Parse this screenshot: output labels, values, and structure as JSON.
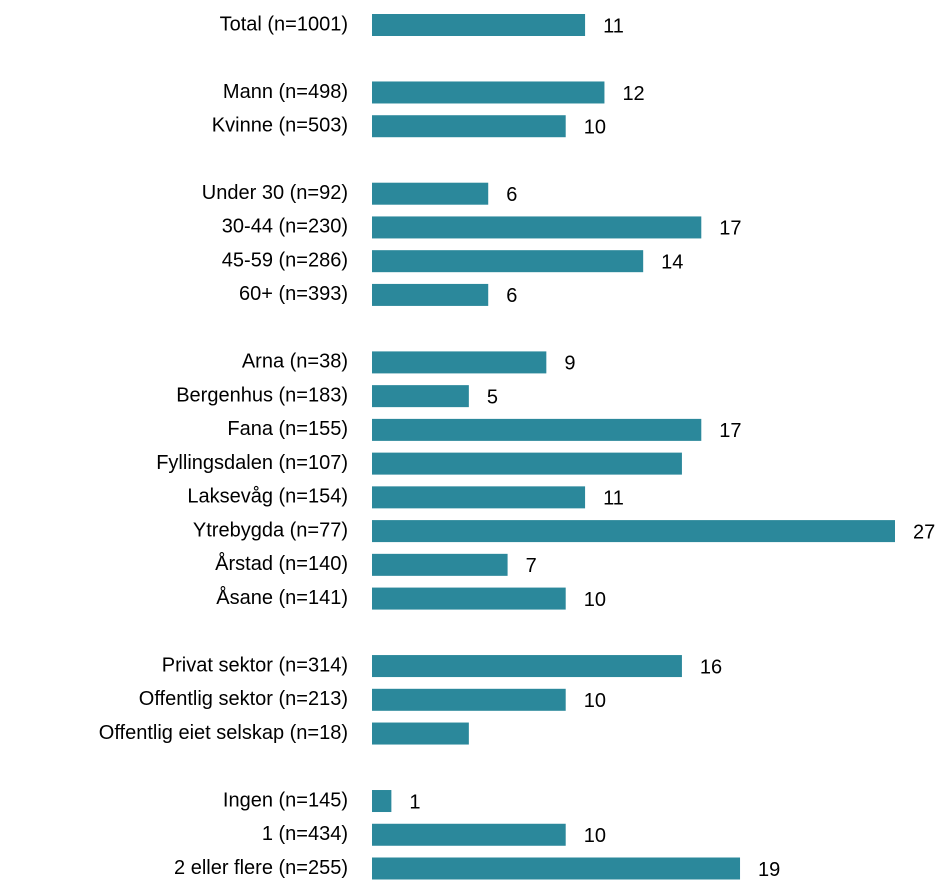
{
  "chart_data": {
    "type": "barh",
    "categories": [
      "Total (n=1001)",
      null,
      "Mann (n=498)",
      "Kvinne (n=503)",
      null,
      "Under 30 (n=92)",
      "30-44 (n=230)",
      "45-59 (n=286)",
      "60+ (n=393)",
      null,
      "Arna (n=38)",
      "Bergenhus (n=183)",
      "Fana (n=155)",
      "Fyllingsdalen (n=107)",
      "Laksevåg (n=154)",
      "Ytrebygda (n=77)",
      "Årstad (n=140)",
      "Åsane (n=141)",
      null,
      "Privat sektor (n=314)",
      "Offentlig sektor (n=213)",
      "Offentlig eiet selskap (n=18)",
      null,
      "Ingen (n=145)",
      "1 (n=434)",
      "2 eller flere (n=255)"
    ],
    "values": [
      11,
      null,
      12,
      10,
      null,
      6,
      17,
      14,
      6,
      null,
      9,
      5,
      17,
      16,
      11,
      27,
      7,
      10,
      null,
      16,
      10,
      5,
      null,
      1,
      10,
      19
    ],
    "value_labels": [
      "11",
      null,
      "12",
      "10",
      null,
      "6",
      "17",
      "14",
      "6",
      null,
      "9",
      "5",
      "17",
      null,
      "11",
      "27",
      "7",
      "10",
      null,
      "16",
      "10",
      null,
      null,
      "1",
      "10",
      "19"
    ],
    "color": "#2b889b",
    "xlim": [
      0,
      27
    ]
  }
}
